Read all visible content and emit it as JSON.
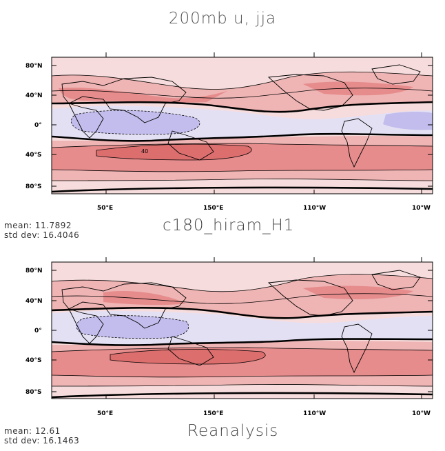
{
  "title": "200mb u, jja",
  "colors": {
    "positive_light": "#f6dcdc",
    "positive_mid": "#efb4b4",
    "positive_strong": "#e68c8c",
    "positive_max": "#dc6e6e",
    "negative_light": "#e4e0f4",
    "negative_mid": "#c2bdec",
    "contour": "#000000"
  },
  "axes": {
    "y_ticks": [
      "80°N",
      "40°N",
      "0°",
      "40°S",
      "80°S"
    ],
    "x_ticks": [
      "50°E",
      "150°E",
      "110°W",
      "10°W"
    ]
  },
  "panels": [
    {
      "name": "c180_hiram_H1",
      "subtitle": "c180_hiram_H1",
      "mean_label": "mean: 11.7892",
      "std_label": "std dev: 16.4046",
      "contour_label": "40"
    },
    {
      "name": "Reanalysis",
      "subtitle": "Reanalysis",
      "mean_label": "mean: 12.61",
      "std_label": "std dev: 16.1463",
      "contour_label": ""
    }
  ]
}
